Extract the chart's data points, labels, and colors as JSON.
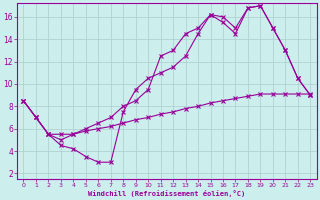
{
  "xlabel": "Windchill (Refroidissement éolien,°C)",
  "background_color": "#cceeed",
  "line_color": "#990099",
  "grid_color": "#aacccc",
  "xlim": [
    -0.5,
    23.5
  ],
  "ylim": [
    1.5,
    17.2
  ],
  "xticks": [
    0,
    1,
    2,
    3,
    4,
    5,
    6,
    7,
    8,
    9,
    10,
    11,
    12,
    13,
    14,
    15,
    16,
    17,
    18,
    19,
    20,
    21,
    22,
    23
  ],
  "yticks": [
    2,
    4,
    6,
    8,
    10,
    12,
    14,
    16
  ],
  "line1_x": [
    0,
    1,
    2,
    3,
    4,
    5,
    6,
    7,
    8,
    9,
    10,
    11,
    12,
    13,
    14,
    15,
    16,
    17,
    18,
    19,
    20,
    21,
    22,
    23
  ],
  "line1_y": [
    8.5,
    7.0,
    5.5,
    4.5,
    4.2,
    3.5,
    3.0,
    3.0,
    7.5,
    9.5,
    10.5,
    11.0,
    11.5,
    12.5,
    14.5,
    16.2,
    15.5,
    14.5,
    16.8,
    17.0,
    15.0,
    13.0,
    10.5,
    9.0
  ],
  "line2_x": [
    0,
    1,
    2,
    3,
    4,
    5,
    6,
    7,
    8,
    9,
    10,
    11,
    12,
    13,
    14,
    15,
    16,
    17,
    18,
    19,
    20,
    21,
    22,
    23
  ],
  "line2_y": [
    8.5,
    7.0,
    5.5,
    5.0,
    5.5,
    6.0,
    6.5,
    7.0,
    8.0,
    8.5,
    9.5,
    12.5,
    13.0,
    14.5,
    15.0,
    16.2,
    16.0,
    15.0,
    16.8,
    17.0,
    15.0,
    13.0,
    10.5,
    9.0
  ],
  "line3_x": [
    0,
    1,
    2,
    3,
    4,
    5,
    6,
    7,
    8,
    9,
    10,
    11,
    12,
    13,
    14,
    15,
    16,
    17,
    18,
    19,
    20,
    21,
    22,
    23
  ],
  "line3_y": [
    8.5,
    7.0,
    5.5,
    5.5,
    5.5,
    5.8,
    6.0,
    6.2,
    6.5,
    6.8,
    7.0,
    7.3,
    7.5,
    7.8,
    8.0,
    8.3,
    8.5,
    8.7,
    8.9,
    9.1,
    9.1,
    9.1,
    9.1,
    9.1
  ]
}
